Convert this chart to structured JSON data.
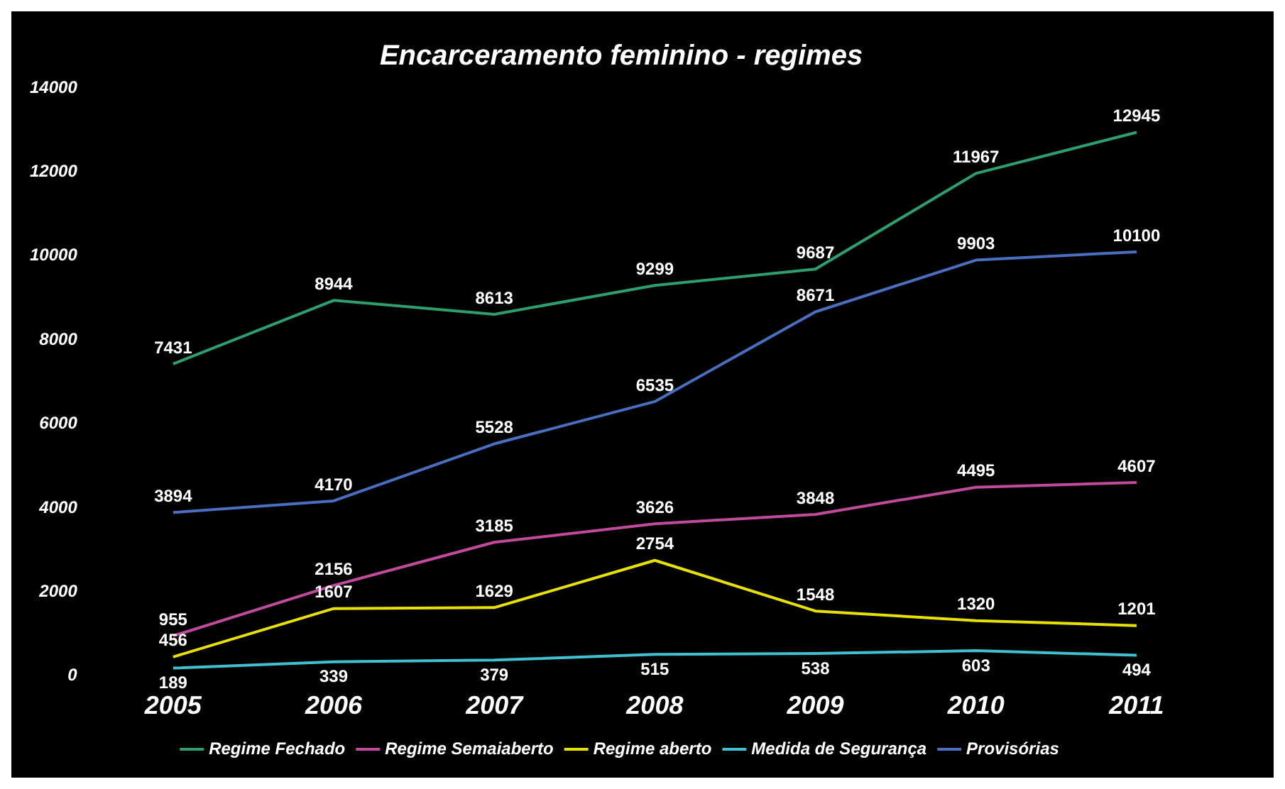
{
  "chart_data": {
    "type": "line",
    "title": "Encarceramento feminino - regimes",
    "categories": [
      "2005",
      "2006",
      "2007",
      "2008",
      "2009",
      "2010",
      "2011"
    ],
    "series": [
      {
        "name": "Regime Fechado",
        "color": "#2e9e6e",
        "values": [
          7431,
          8944,
          8613,
          9299,
          9687,
          11967,
          12945
        ]
      },
      {
        "name": "Regime Semaiaberto",
        "color": "#c04a9c",
        "values": [
          955,
          2156,
          3185,
          3626,
          3848,
          4495,
          4607
        ]
      },
      {
        "name": "Regime aberto",
        "color": "#e8e000",
        "values": [
          456,
          1607,
          1629,
          2754,
          1548,
          1320,
          1201
        ]
      },
      {
        "name": "Medida de Segurança",
        "color": "#40c0d0",
        "values": [
          189,
          339,
          379,
          515,
          538,
          603,
          494
        ]
      },
      {
        "name": "Provisórias",
        "color": "#4a6ec0",
        "values": [
          3894,
          4170,
          5528,
          6535,
          8671,
          9903,
          10100
        ]
      }
    ],
    "ylim": [
      0,
      14000
    ],
    "yticks": [
      0,
      2000,
      4000,
      6000,
      8000,
      10000,
      12000,
      14000
    ],
    "grid": false,
    "legend": "bottom",
    "marker": "none",
    "line_style": "solid",
    "data_labels": true
  }
}
